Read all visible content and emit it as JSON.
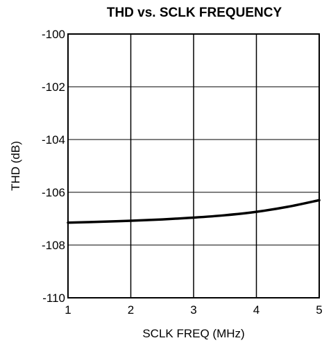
{
  "chart_data": {
    "type": "line",
    "title": "THD vs. SCLK FREQUENCY",
    "xlabel": "SCLK FREQ (MHz)",
    "ylabel": "THD (dB)",
    "xlim": [
      1,
      5
    ],
    "ylim": [
      -110,
      -100
    ],
    "x_ticks": [
      1,
      2,
      3,
      4,
      5
    ],
    "x_tick_labels": [
      "1",
      "2",
      "3",
      "4",
      "5"
    ],
    "y_ticks": [
      -100,
      -102,
      -104,
      -106,
      -108,
      -110
    ],
    "y_tick_labels": [
      "-100",
      "-102",
      "-104",
      "-106",
      "-108",
      "-110"
    ],
    "grid": true,
    "series": [
      {
        "color": "#000000",
        "x": [
          1,
          1.5,
          2,
          2.5,
          3,
          3.5,
          4,
          4.5,
          5
        ],
        "y": [
          -107.15,
          -107.12,
          -107.08,
          -107.03,
          -106.96,
          -106.87,
          -106.74,
          -106.55,
          -106.3
        ]
      }
    ]
  }
}
